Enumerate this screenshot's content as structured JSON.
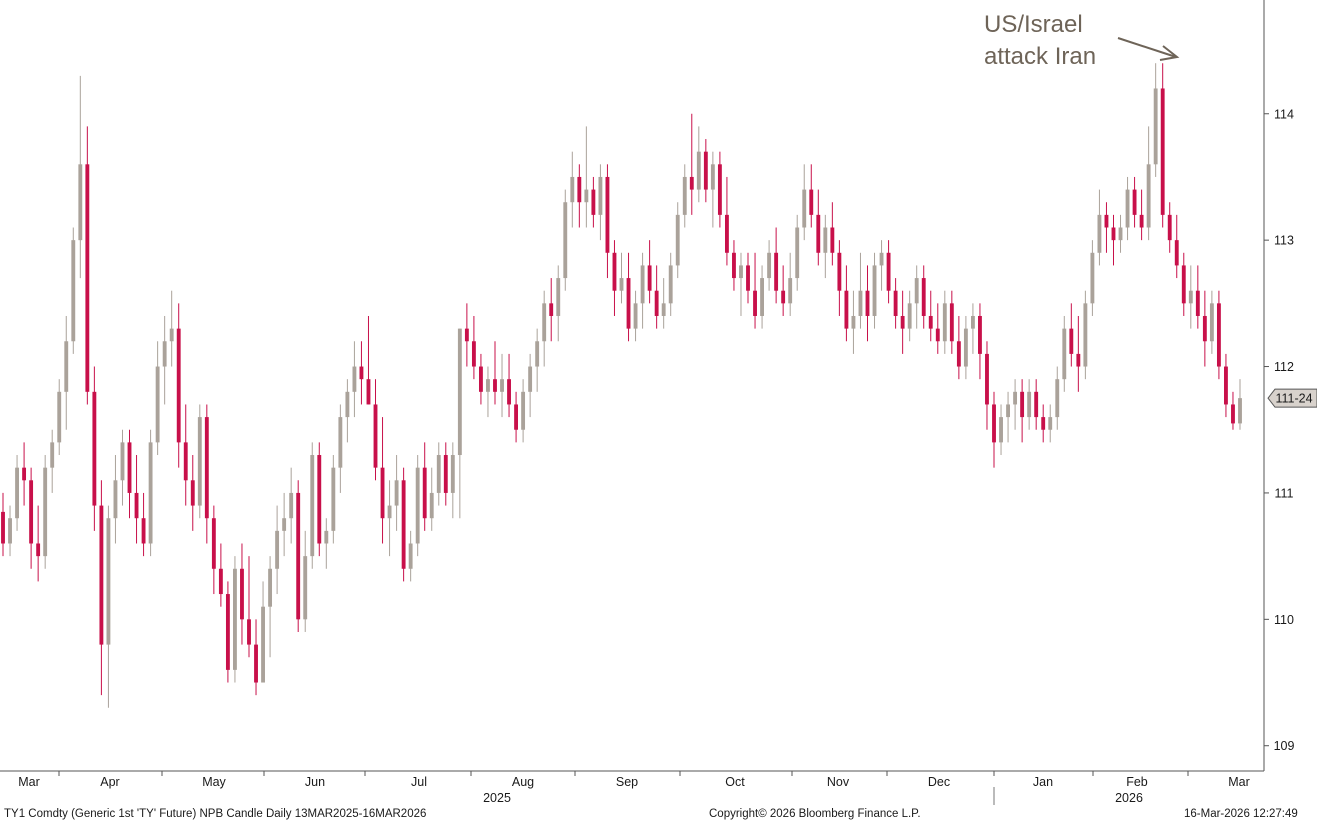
{
  "chart_data": {
    "type": "candlestick",
    "instrument": "TY1 Comdty (Generic 1st 'TY' Future) NPB Candle Daily 13MAR2025-16MAR2026",
    "ylim": [
      108.8,
      114.9
    ],
    "y_ticks": [
      109,
      110,
      111,
      112,
      113,
      114
    ],
    "current_value_label": "111-24",
    "last_price": 111.75,
    "month_labels": [
      "Mar",
      "Apr",
      "May",
      "Jun",
      "Jul",
      "Aug",
      "Sep",
      "Oct",
      "Nov",
      "Dec",
      "Jan",
      "Feb",
      "Mar"
    ],
    "year_labels": [
      "2025",
      "2026"
    ],
    "annotation": {
      "lines": [
        "US/Israel",
        "attack Iran"
      ]
    },
    "colors": {
      "up": "#aaa29a",
      "down": "#c8104a",
      "text": "#1a1a1a",
      "annotation": "#6e6458"
    },
    "candles": [
      [
        110.85,
        111.0,
        110.5,
        110.6
      ],
      [
        110.6,
        110.9,
        110.5,
        110.8
      ],
      [
        110.8,
        111.3,
        110.7,
        111.2
      ],
      [
        111.2,
        111.4,
        110.9,
        111.1
      ],
      [
        111.1,
        111.2,
        110.4,
        110.6
      ],
      [
        110.6,
        110.9,
        110.3,
        110.5
      ],
      [
        110.5,
        111.3,
        110.4,
        111.2
      ],
      [
        111.2,
        111.5,
        111.0,
        111.4
      ],
      [
        111.4,
        111.9,
        111.3,
        111.8
      ],
      [
        111.8,
        112.4,
        111.5,
        112.2
      ],
      [
        112.2,
        113.1,
        112.1,
        113.0
      ],
      [
        113.0,
        114.3,
        112.7,
        113.6
      ],
      [
        113.6,
        113.9,
        111.7,
        111.8
      ],
      [
        111.8,
        112.0,
        110.7,
        110.9
      ],
      [
        110.9,
        111.1,
        109.4,
        109.8
      ],
      [
        109.8,
        110.9,
        109.3,
        110.8
      ],
      [
        110.8,
        111.3,
        110.6,
        111.1
      ],
      [
        111.1,
        111.5,
        110.9,
        111.4
      ],
      [
        111.4,
        111.5,
        110.8,
        111.0
      ],
      [
        111.0,
        111.3,
        110.6,
        110.8
      ],
      [
        110.8,
        111.0,
        110.5,
        110.6
      ],
      [
        110.6,
        111.5,
        110.5,
        111.4
      ],
      [
        111.4,
        112.2,
        111.3,
        112.0
      ],
      [
        112.0,
        112.4,
        111.7,
        112.2
      ],
      [
        112.2,
        112.6,
        112.0,
        112.3
      ],
      [
        112.3,
        112.5,
        111.2,
        111.4
      ],
      [
        111.4,
        111.7,
        110.9,
        111.1
      ],
      [
        111.1,
        111.3,
        110.7,
        110.9
      ],
      [
        110.9,
        111.7,
        110.8,
        111.6
      ],
      [
        111.6,
        111.7,
        110.6,
        110.8
      ],
      [
        110.8,
        110.9,
        110.2,
        110.4
      ],
      [
        110.4,
        110.6,
        110.1,
        110.2
      ],
      [
        110.2,
        110.3,
        109.5,
        109.6
      ],
      [
        109.6,
        110.5,
        109.5,
        110.4
      ],
      [
        110.4,
        110.6,
        109.8,
        110.0
      ],
      [
        110.0,
        110.5,
        109.7,
        109.8
      ],
      [
        109.8,
        110.0,
        109.4,
        109.5
      ],
      [
        109.5,
        110.3,
        109.5,
        110.1
      ],
      [
        110.1,
        110.5,
        109.7,
        110.4
      ],
      [
        110.4,
        110.9,
        110.2,
        110.7
      ],
      [
        110.7,
        111.0,
        110.5,
        110.8
      ],
      [
        110.8,
        111.2,
        110.6,
        111.0
      ],
      [
        111.0,
        111.1,
        109.9,
        110.0
      ],
      [
        110.0,
        110.7,
        109.9,
        110.5
      ],
      [
        110.5,
        111.4,
        110.4,
        111.3
      ],
      [
        111.3,
        111.4,
        110.5,
        110.6
      ],
      [
        110.6,
        110.8,
        110.4,
        110.7
      ],
      [
        110.7,
        111.3,
        110.6,
        111.2
      ],
      [
        111.2,
        111.7,
        111.0,
        111.6
      ],
      [
        111.6,
        111.9,
        111.4,
        111.8
      ],
      [
        111.8,
        112.2,
        111.6,
        112.0
      ],
      [
        112.0,
        112.2,
        111.7,
        111.9
      ],
      [
        111.9,
        112.4,
        111.7,
        111.7
      ],
      [
        111.7,
        111.9,
        111.1,
        111.2
      ],
      [
        111.2,
        111.6,
        110.6,
        110.8
      ],
      [
        110.8,
        111.1,
        110.5,
        110.9
      ],
      [
        110.9,
        111.3,
        110.7,
        111.1
      ],
      [
        111.1,
        111.2,
        110.3,
        110.4
      ],
      [
        110.4,
        110.7,
        110.3,
        110.6
      ],
      [
        110.6,
        111.3,
        110.5,
        111.2
      ],
      [
        111.2,
        111.4,
        110.7,
        110.8
      ],
      [
        110.8,
        111.2,
        110.7,
        111.0
      ],
      [
        111.0,
        111.4,
        110.9,
        111.3
      ],
      [
        111.3,
        111.4,
        110.9,
        111.0
      ],
      [
        111.0,
        111.4,
        110.8,
        111.3
      ],
      [
        111.3,
        112.3,
        110.8,
        112.3
      ],
      [
        112.3,
        112.5,
        112.0,
        112.2
      ],
      [
        112.2,
        112.4,
        111.9,
        112.0
      ],
      [
        112.0,
        112.1,
        111.7,
        111.8
      ],
      [
        111.8,
        112.0,
        111.6,
        111.9
      ],
      [
        111.9,
        112.2,
        111.7,
        111.8
      ],
      [
        111.8,
        112.1,
        111.6,
        111.9
      ],
      [
        111.9,
        112.1,
        111.6,
        111.7
      ],
      [
        111.7,
        111.8,
        111.4,
        111.5
      ],
      [
        111.5,
        111.9,
        111.4,
        111.8
      ],
      [
        111.8,
        112.1,
        111.6,
        112.0
      ],
      [
        112.0,
        112.3,
        111.8,
        112.2
      ],
      [
        112.2,
        112.6,
        112.0,
        112.5
      ],
      [
        112.5,
        112.7,
        112.2,
        112.4
      ],
      [
        112.4,
        112.8,
        112.2,
        112.7
      ],
      [
        112.7,
        113.4,
        112.6,
        113.3
      ],
      [
        113.3,
        113.7,
        113.1,
        113.5
      ],
      [
        113.5,
        113.6,
        113.1,
        113.3
      ],
      [
        113.3,
        113.9,
        113.1,
        113.4
      ],
      [
        113.4,
        113.5,
        113.1,
        113.2
      ],
      [
        113.2,
        113.6,
        113.0,
        113.5
      ],
      [
        113.5,
        113.6,
        112.7,
        112.9
      ],
      [
        112.9,
        113.0,
        112.4,
        112.6
      ],
      [
        112.6,
        112.9,
        112.5,
        112.7
      ],
      [
        112.7,
        112.9,
        112.2,
        112.3
      ],
      [
        112.3,
        112.6,
        112.2,
        112.5
      ],
      [
        112.5,
        112.9,
        112.3,
        112.8
      ],
      [
        112.8,
        113.0,
        112.5,
        112.6
      ],
      [
        112.6,
        112.8,
        112.3,
        112.4
      ],
      [
        112.4,
        112.7,
        112.3,
        112.5
      ],
      [
        112.5,
        112.9,
        112.4,
        112.8
      ],
      [
        112.8,
        113.3,
        112.7,
        113.2
      ],
      [
        113.2,
        113.6,
        113.1,
        113.5
      ],
      [
        113.5,
        114.0,
        113.2,
        113.4
      ],
      [
        113.4,
        113.9,
        113.3,
        113.7
      ],
      [
        113.7,
        113.8,
        113.3,
        113.4
      ],
      [
        113.4,
        113.7,
        113.1,
        113.6
      ],
      [
        113.6,
        113.7,
        113.1,
        113.2
      ],
      [
        113.2,
        113.5,
        112.8,
        112.9
      ],
      [
        112.9,
        113.0,
        112.6,
        112.7
      ],
      [
        112.7,
        112.9,
        112.4,
        112.8
      ],
      [
        112.8,
        112.9,
        112.5,
        112.6
      ],
      [
        112.6,
        112.9,
        112.3,
        112.4
      ],
      [
        112.4,
        112.8,
        112.3,
        112.7
      ],
      [
        112.7,
        113.0,
        112.6,
        112.9
      ],
      [
        112.9,
        113.1,
        112.5,
        112.6
      ],
      [
        112.6,
        112.8,
        112.4,
        112.5
      ],
      [
        112.5,
        112.9,
        112.4,
        112.7
      ],
      [
        112.7,
        113.2,
        112.6,
        113.1
      ],
      [
        113.1,
        113.6,
        113.0,
        113.4
      ],
      [
        113.4,
        113.6,
        113.1,
        113.2
      ],
      [
        113.2,
        113.4,
        112.8,
        112.9
      ],
      [
        112.9,
        113.2,
        112.7,
        113.1
      ],
      [
        113.1,
        113.3,
        112.8,
        112.9
      ],
      [
        112.9,
        113.0,
        112.4,
        112.6
      ],
      [
        112.6,
        112.8,
        112.2,
        112.3
      ],
      [
        112.3,
        112.6,
        112.1,
        112.4
      ],
      [
        112.4,
        112.9,
        112.3,
        112.6
      ],
      [
        112.6,
        112.8,
        112.2,
        112.4
      ],
      [
        112.4,
        112.9,
        112.3,
        112.8
      ],
      [
        112.8,
        113.0,
        112.6,
        112.9
      ],
      [
        112.9,
        113.0,
        112.5,
        112.6
      ],
      [
        112.6,
        112.7,
        112.3,
        112.4
      ],
      [
        112.4,
        112.6,
        112.1,
        112.3
      ],
      [
        112.3,
        112.6,
        112.2,
        112.5
      ],
      [
        112.5,
        112.8,
        112.3,
        112.7
      ],
      [
        112.7,
        112.8,
        112.3,
        112.4
      ],
      [
        112.4,
        112.6,
        112.2,
        112.3
      ],
      [
        112.3,
        112.5,
        112.1,
        112.2
      ],
      [
        112.2,
        112.6,
        112.1,
        112.5
      ],
      [
        112.5,
        112.6,
        112.1,
        112.2
      ],
      [
        112.2,
        112.4,
        111.9,
        112.0
      ],
      [
        112.0,
        112.4,
        111.9,
        112.3
      ],
      [
        112.3,
        112.5,
        112.1,
        112.4
      ],
      [
        112.4,
        112.5,
        111.9,
        112.1
      ],
      [
        112.1,
        112.2,
        111.5,
        111.7
      ],
      [
        111.7,
        111.8,
        111.2,
        111.4
      ],
      [
        111.4,
        111.7,
        111.3,
        111.6
      ],
      [
        111.6,
        111.8,
        111.4,
        111.7
      ],
      [
        111.7,
        111.9,
        111.5,
        111.8
      ],
      [
        111.8,
        111.9,
        111.4,
        111.6
      ],
      [
        111.6,
        111.9,
        111.5,
        111.8
      ],
      [
        111.8,
        111.9,
        111.5,
        111.6
      ],
      [
        111.6,
        111.7,
        111.4,
        111.5
      ],
      [
        111.5,
        111.7,
        111.4,
        111.6
      ],
      [
        111.6,
        112.0,
        111.5,
        111.9
      ],
      [
        111.9,
        112.4,
        111.8,
        112.3
      ],
      [
        112.3,
        112.5,
        112.0,
        112.1
      ],
      [
        112.1,
        112.4,
        111.8,
        112.0
      ],
      [
        112.0,
        112.6,
        111.9,
        112.5
      ],
      [
        112.5,
        113.0,
        112.4,
        112.9
      ],
      [
        112.9,
        113.4,
        112.8,
        113.2
      ],
      [
        113.2,
        113.3,
        112.9,
        113.1
      ],
      [
        113.1,
        113.2,
        112.8,
        113.0
      ],
      [
        113.0,
        113.2,
        112.9,
        113.1
      ],
      [
        113.1,
        113.5,
        113.0,
        113.4
      ],
      [
        113.4,
        113.5,
        113.1,
        113.2
      ],
      [
        113.2,
        113.4,
        113.0,
        113.1
      ],
      [
        113.1,
        113.9,
        113.0,
        113.6
      ],
      [
        113.6,
        114.4,
        113.5,
        114.2
      ],
      [
        114.2,
        114.4,
        113.1,
        113.2
      ],
      [
        113.2,
        113.3,
        112.9,
        113.0
      ],
      [
        113.0,
        113.2,
        112.7,
        112.8
      ],
      [
        112.8,
        112.9,
        112.4,
        112.5
      ],
      [
        112.5,
        112.8,
        112.3,
        112.6
      ],
      [
        112.6,
        112.8,
        112.3,
        112.4
      ],
      [
        112.4,
        112.6,
        112.0,
        112.2
      ],
      [
        112.2,
        112.6,
        112.1,
        112.5
      ],
      [
        112.5,
        112.6,
        111.9,
        112.0
      ],
      [
        112.0,
        112.1,
        111.6,
        111.7
      ],
      [
        111.7,
        111.8,
        111.5,
        111.55
      ],
      [
        111.55,
        111.9,
        111.5,
        111.75
      ]
    ]
  }
}
